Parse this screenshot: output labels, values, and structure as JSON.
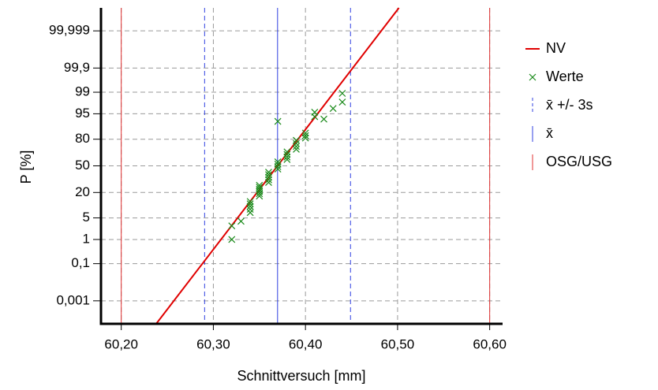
{
  "chart_data": {
    "type": "probability",
    "x_label": "Schnittversuch [mm]",
    "y_label": "P [%]",
    "xlim": [
      60.178,
      60.614
    ],
    "xticks": [
      {
        "value": 60.2,
        "label": "60,20"
      },
      {
        "value": 60.3,
        "label": "60,30"
      },
      {
        "value": 60.4,
        "label": "60,40"
      },
      {
        "value": 60.5,
        "label": "60,50"
      },
      {
        "value": 60.6,
        "label": "60,60"
      }
    ],
    "ylim": [
      3e-05,
      99.99997
    ],
    "yscale": "probability",
    "yticks": [
      {
        "value": 0.001,
        "label": "0,001"
      },
      {
        "value": 0.1,
        "label": "0,1"
      },
      1,
      5,
      20,
      50,
      80,
      95,
      99,
      {
        "value": 99.9,
        "label": "99,9"
      },
      {
        "value": 99.999,
        "label": "99,999"
      }
    ],
    "grid": true,
    "legend": "right",
    "fit": {
      "name": "NV",
      "color": "#e00000",
      "mean": 60.3697,
      "sd": 0.0264
    },
    "series": [
      {
        "name": "Werte",
        "color": "#1a8a1a",
        "x": [
          60.32,
          60.32,
          60.33,
          60.34,
          60.34,
          60.34,
          60.34,
          60.34,
          60.35,
          60.35,
          60.35,
          60.35,
          60.35,
          60.35,
          60.36,
          60.36,
          60.36,
          60.36,
          60.36,
          60.37,
          60.37,
          60.37,
          60.37,
          60.37,
          60.38,
          60.38,
          60.38,
          60.38,
          60.39,
          60.39,
          60.39,
          60.39,
          60.4,
          60.4,
          60.4,
          60.41,
          60.41,
          60.42,
          60.43,
          60.44,
          60.44
        ],
        "values": [
          1.0,
          2.9,
          4.0,
          7,
          8.5,
          10,
          11.5,
          13,
          17,
          19,
          21,
          23,
          25,
          27,
          30,
          33,
          36,
          39,
          42,
          46,
          49,
          52,
          55,
          92,
          58,
          61,
          64,
          67,
          70,
          73,
          76,
          79,
          81,
          83,
          85,
          94,
          95.5,
          93,
          96.5,
          97.8,
          98.9
        ]
      }
    ],
    "ref_lines": [
      {
        "name": "x̄ +/- 3s",
        "color": "#3040e0",
        "style": "dashed",
        "x": [
          60.2905,
          60.4489
        ]
      },
      {
        "name": "x̄",
        "color": "#3040e0",
        "style": "solid",
        "x": [
          60.3697
        ]
      },
      {
        "name": "OSG/USG",
        "color": "#e03030",
        "style": "solid",
        "x": [
          60.2,
          60.6
        ]
      }
    ]
  }
}
